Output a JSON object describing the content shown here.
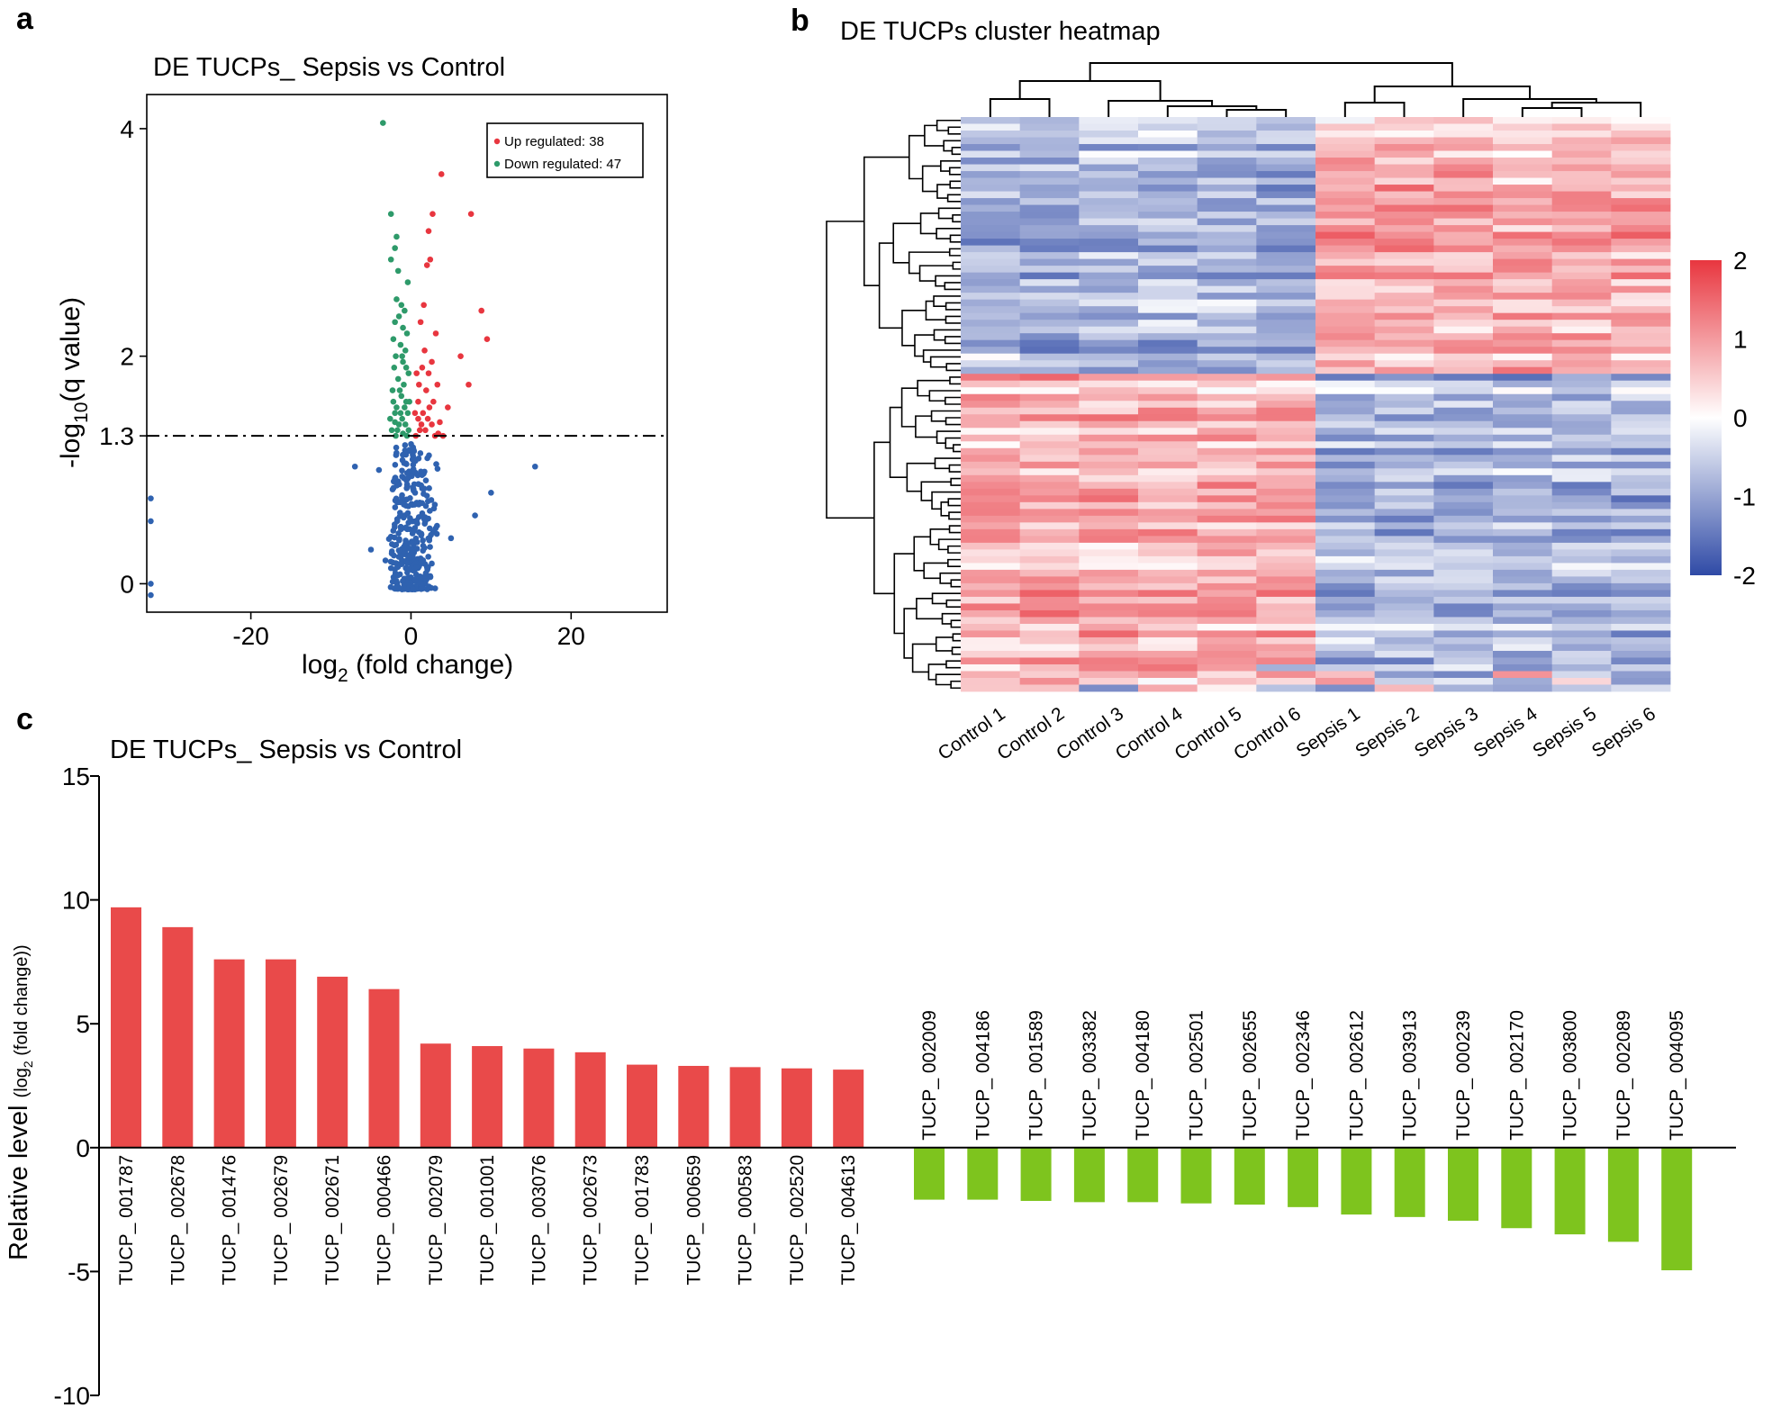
{
  "chart_data": [
    {
      "panel": "a",
      "type": "scatter",
      "title": "DE TUCPs_ Sepsis vs Control",
      "xlabel_main": "log",
      "xlabel_sub": "2",
      "xlabel_rest": " (fold change)",
      "ylabel_main": "-log",
      "ylabel_sub": "10",
      "ylabel_rest": "(q value)",
      "xlim": [
        -33,
        32
      ],
      "ylim": [
        -0.25,
        4.3
      ],
      "xticks": [
        -20,
        0,
        20
      ],
      "yticks": [
        0,
        1.3,
        2,
        4
      ],
      "threshold": 1.3,
      "legend": [
        {
          "label": "Up regulated: 38",
          "color": "#e8363f"
        },
        {
          "label": "Down regulated: 47",
          "color": "#2e9a6a"
        }
      ],
      "colors": {
        "up": "#e8363f",
        "down": "#2e9a6a",
        "ns": "#2f62b0"
      },
      "series": [
        {
          "name": "up",
          "points": [
            [
              3.8,
              3.6
            ],
            [
              7.5,
              3.25
            ],
            [
              2.7,
              3.25
            ],
            [
              2.2,
              3.1
            ],
            [
              2.4,
              2.85
            ],
            [
              2.0,
              2.8
            ],
            [
              8.8,
              2.4
            ],
            [
              1.6,
              2.45
            ],
            [
              9.5,
              2.15
            ],
            [
              1.2,
              2.3
            ],
            [
              3.1,
              2.2
            ],
            [
              6.2,
              2.0
            ],
            [
              2.6,
              1.95
            ],
            [
              1.4,
              1.9
            ],
            [
              2.2,
              1.85
            ],
            [
              0.7,
              1.85
            ],
            [
              7.2,
              1.75
            ],
            [
              1.9,
              1.7
            ],
            [
              3.3,
              1.75
            ],
            [
              0.9,
              1.6
            ],
            [
              2.8,
              1.6
            ],
            [
              4.6,
              1.55
            ],
            [
              1.5,
              1.5
            ],
            [
              2.1,
              1.45
            ],
            [
              0.9,
              1.45
            ],
            [
              2.6,
              1.4
            ],
            [
              3.6,
              1.42
            ],
            [
              1.1,
              1.35
            ],
            [
              0.6,
              1.3
            ],
            [
              1.8,
              1.35
            ],
            [
              4.0,
              1.3
            ],
            [
              1.3,
              1.4
            ],
            [
              3.0,
              1.3
            ],
            [
              0.5,
              1.5
            ],
            [
              2.3,
              1.55
            ],
            [
              3.4,
              1.32
            ],
            [
              1.7,
              2.05
            ],
            [
              1.0,
              1.75
            ]
          ]
        },
        {
          "name": "down",
          "points": [
            [
              -3.5,
              4.05
            ],
            [
              -2.5,
              3.25
            ],
            [
              -1.8,
              3.05
            ],
            [
              -2.0,
              2.95
            ],
            [
              -2.5,
              2.85
            ],
            [
              -1.6,
              2.75
            ],
            [
              -0.4,
              2.65
            ],
            [
              -1.8,
              2.5
            ],
            [
              -1.2,
              2.45
            ],
            [
              -0.8,
              2.4
            ],
            [
              -1.5,
              2.35
            ],
            [
              -2.0,
              2.3
            ],
            [
              -1.0,
              2.25
            ],
            [
              -0.5,
              2.2
            ],
            [
              -2.2,
              2.15
            ],
            [
              -1.3,
              2.1
            ],
            [
              -0.7,
              2.05
            ],
            [
              -1.9,
              2.0
            ],
            [
              -1.0,
              1.95
            ],
            [
              -2.1,
              1.9
            ],
            [
              -0.3,
              1.85
            ],
            [
              -1.6,
              1.8
            ],
            [
              -0.9,
              1.75
            ],
            [
              -2.3,
              1.7
            ],
            [
              -1.2,
              1.65
            ],
            [
              -0.6,
              1.6
            ],
            [
              -1.8,
              1.55
            ],
            [
              -0.4,
              1.5
            ],
            [
              -2.0,
              1.5
            ],
            [
              -1.1,
              1.45
            ],
            [
              -0.7,
              1.4
            ],
            [
              -1.5,
              1.4
            ],
            [
              -2.4,
              1.35
            ],
            [
              -0.3,
              1.35
            ],
            [
              -1.0,
              1.32
            ],
            [
              -1.9,
              1.3
            ],
            [
              -0.5,
              1.3
            ],
            [
              -1.3,
              1.5
            ],
            [
              -0.2,
              1.6
            ],
            [
              -2.6,
              1.45
            ],
            [
              -1.7,
              1.35
            ],
            [
              -0.8,
              1.55
            ],
            [
              -2.2,
              1.6
            ],
            [
              -1.4,
              1.7
            ],
            [
              -0.6,
              1.9
            ],
            [
              -1.1,
              2.0
            ],
            [
              -2.0,
              1.42
            ]
          ]
        }
      ],
      "ns_count": 340,
      "ns_extra": [
        [
          -7,
          1.03
        ],
        [
          -4,
          1.0
        ],
        [
          15.5,
          1.03
        ],
        [
          10,
          0.8
        ],
        [
          8,
          0.6
        ],
        [
          -32.5,
          0.75
        ],
        [
          -32.5,
          0.55
        ],
        [
          -32.5,
          0.0
        ],
        [
          -32.5,
          -0.1
        ],
        [
          -5,
          0.3
        ],
        [
          5,
          0.4
        ]
      ]
    },
    {
      "panel": "b",
      "type": "heatmap",
      "title": "DE TUCPs cluster heatmap",
      "columns": [
        "Control 1",
        "Control 2",
        "Control 3",
        "Control 4",
        "Control 5",
        "Control 6",
        "Sepsis 1",
        "Sepsis 2",
        "Sepsis 3",
        "Sepsis 4",
        "Sepsis 5",
        "Sepsis 6"
      ],
      "row_count": 85,
      "row_split": 38,
      "colorbar": {
        "min": -2,
        "max": 2,
        "ticks": [
          "2",
          "1",
          "0",
          "-1",
          "-2"
        ],
        "low": "#2f4aa6",
        "mid": "#ffffff",
        "high": "#e8363f"
      }
    },
    {
      "panel": "c",
      "type": "bar",
      "title": "DE TUCPs_ Sepsis vs Control",
      "ylabel_main": "Relative level ",
      "ylabel_small": "(log",
      "ylabel_sub": "2",
      "ylabel_rest": " (fold change))",
      "ylim": [
        -10,
        15
      ],
      "yticks": [
        -10,
        -5,
        0,
        5,
        10,
        15
      ],
      "up_color": "#e94a4a",
      "down_color": "#7ec41e",
      "up": {
        "categories": [
          "TUCP_ 001787",
          "TUCP_ 002678",
          "TUCP_ 001476",
          "TUCP_ 002679",
          "TUCP_ 002671",
          "TUCP_ 000466",
          "TUCP_ 002079",
          "TUCP_ 001001",
          "TUCP_ 003076",
          "TUCP_ 002673",
          "TUCP_ 001783",
          "TUCP_ 000659",
          "TUCP_ 000583",
          "TUCP_ 002520",
          "TUCP_ 004613"
        ],
        "values": [
          9.7,
          8.9,
          7.6,
          7.6,
          6.9,
          6.4,
          4.2,
          4.1,
          4.0,
          3.85,
          3.35,
          3.3,
          3.25,
          3.2,
          3.15
        ]
      },
      "down": {
        "categories": [
          "TUCP_ 002009",
          "TUCP_ 004186",
          "TUCP_ 001589",
          "TUCP_ 003382",
          "TUCP_ 004180",
          "TUCP_ 002501",
          "TUCP_ 002655",
          "TUCP_ 002346",
          "TUCP_ 002612",
          "TUCP_ 003913",
          "TUCP_ 000239",
          "TUCP_ 002170",
          "TUCP_ 003800",
          "TUCP_ 002089",
          "TUCP_ 004095"
        ],
        "values": [
          -2.1,
          -2.1,
          -2.15,
          -2.2,
          -2.2,
          -2.25,
          -2.3,
          -2.4,
          -2.7,
          -2.8,
          -2.95,
          -3.25,
          -3.5,
          -3.8,
          -4.95
        ]
      }
    }
  ]
}
